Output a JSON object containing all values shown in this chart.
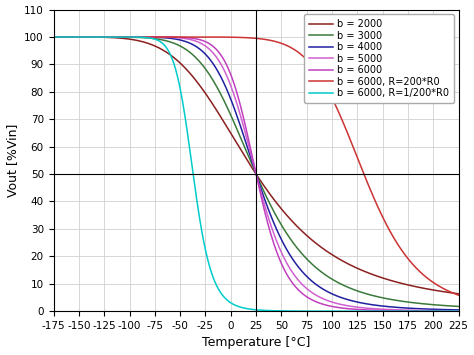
{
  "title": "",
  "xlabel": "Temperature [°C]",
  "ylabel": "Vout [%Vin]",
  "xlim": [
    -175,
    225
  ],
  "ylim": [
    0,
    110
  ],
  "xticks": [
    -175,
    -150,
    -125,
    -100,
    -75,
    -50,
    -25,
    0,
    25,
    50,
    75,
    100,
    125,
    150,
    175,
    200,
    225
  ],
  "yticks": [
    0,
    10,
    20,
    30,
    40,
    50,
    60,
    70,
    80,
    90,
    100,
    110
  ],
  "crosshair_x": 25,
  "crosshair_y": 50,
  "T0_C": 25,
  "series": [
    {
      "b": 2000,
      "R_factor": 1.0,
      "color": "#8B2020",
      "label": "b = 2000",
      "lw": 1.1
    },
    {
      "b": 3000,
      "R_factor": 1.0,
      "color": "#3a7a3a",
      "label": "b = 3000",
      "lw": 1.1
    },
    {
      "b": 4000,
      "R_factor": 1.0,
      "color": "#2020a0",
      "label": "b = 4000",
      "lw": 1.1
    },
    {
      "b": 5000,
      "R_factor": 1.0,
      "color": "#d060d0",
      "label": "b = 5000",
      "lw": 1.1
    },
    {
      "b": 6000,
      "R_factor": 1.0,
      "color": "#c040c0",
      "label": "b = 6000",
      "lw": 1.1
    },
    {
      "b": 6000,
      "R_factor": 200.0,
      "color": "#cc3333",
      "label": "b = 6000, R=200*R0",
      "lw": 1.1
    },
    {
      "b": 6000,
      "R_factor": 0.005,
      "color": "#00cccc",
      "label": "b = 6000, R=1/200*R0",
      "lw": 1.1
    }
  ],
  "legend_fontsize": 7.0,
  "axis_fontsize": 9,
  "tick_fontsize": 7.5,
  "grid_color": "#d0d0d0",
  "background_color": "#ffffff"
}
